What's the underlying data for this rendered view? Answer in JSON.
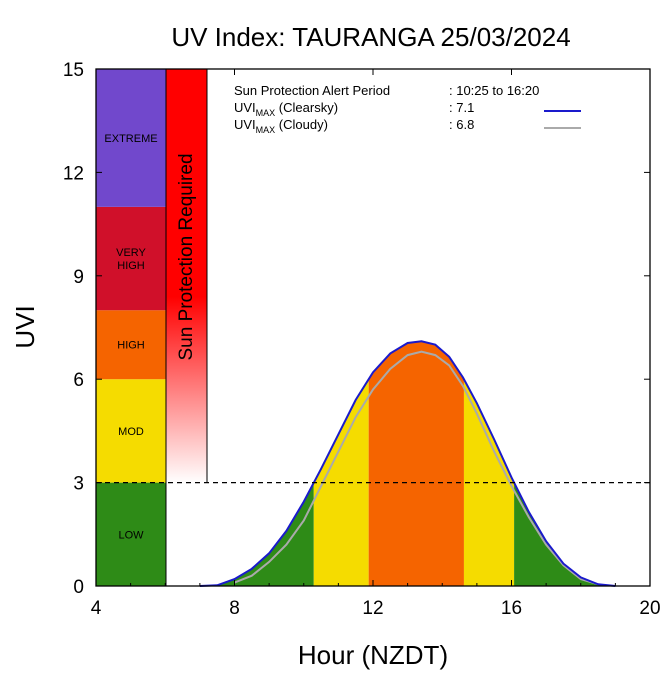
{
  "chart_data": {
    "type": "area",
    "title": "UV Index: TAURANGA 25/03/2024",
    "xlabel": "Hour (NZDT)",
    "ylabel": "UVI",
    "xlim": [
      4,
      20
    ],
    "ylim": [
      0,
      15
    ],
    "xticks": [
      "4",
      "8",
      "12",
      "16",
      "20"
    ],
    "yticks": [
      "0",
      "3",
      "6",
      "9",
      "12",
      "15"
    ],
    "threshold": 3,
    "sun_protection_label": "Sun Protection Required",
    "categories": [
      {
        "label": "LOW",
        "from": 0,
        "to": 3,
        "color": "#2e8b17"
      },
      {
        "label": "MOD",
        "from": 3,
        "to": 6,
        "color": "#f5dc00"
      },
      {
        "label": "HIGH",
        "from": 6,
        "to": 8,
        "color": "#f56400"
      },
      {
        "label": "VERY HIGH",
        "from": 8,
        "to": 11,
        "color": "#d0102a"
      },
      {
        "label": "EXTREME",
        "from": 11,
        "to": 15,
        "color": "#7148cc"
      }
    ],
    "series": [
      {
        "name": "Clearsky",
        "color": "#1a1acc",
        "x": [
          7.0,
          7.5,
          8.0,
          8.5,
          9.0,
          9.5,
          10.0,
          10.5,
          11.0,
          11.5,
          12.0,
          12.5,
          13.0,
          13.4,
          13.8,
          14.2,
          14.6,
          15.0,
          15.5,
          16.0,
          16.5,
          17.0,
          17.5,
          18.0,
          18.5,
          19.0
        ],
        "values": [
          0.0,
          0.02,
          0.2,
          0.5,
          0.95,
          1.6,
          2.45,
          3.4,
          4.4,
          5.4,
          6.2,
          6.75,
          7.05,
          7.1,
          7.0,
          6.65,
          6.05,
          5.3,
          4.25,
          3.15,
          2.15,
          1.3,
          0.65,
          0.25,
          0.05,
          0.0
        ]
      },
      {
        "name": "Cloudy",
        "color": "#aaaaaa",
        "x": [
          8.0,
          8.5,
          9.0,
          9.5,
          10.0,
          10.5,
          11.0,
          11.5,
          12.0,
          12.5,
          13.0,
          13.4,
          13.8,
          14.2,
          14.6,
          15.0,
          15.5,
          16.0,
          16.5,
          17.0,
          17.5,
          18.0,
          18.5
        ],
        "values": [
          0.1,
          0.3,
          0.7,
          1.2,
          1.9,
          2.9,
          3.9,
          4.9,
          5.7,
          6.3,
          6.7,
          6.8,
          6.7,
          6.4,
          5.8,
          5.0,
          3.9,
          2.9,
          2.0,
          1.2,
          0.6,
          0.2,
          0.05
        ]
      }
    ],
    "legend": {
      "alert_label": "Sun Protection Alert Period",
      "alert_value": ": 10:25 to 16:20",
      "uvi_prefix": "UVI",
      "uvi_sub": "MAX",
      "clearsky_label": " (Clearsky)",
      "clearsky_value": ":  7.1",
      "cloudy_label": " (Cloudy)",
      "cloudy_value": ":  6.8",
      "placement": "top-right"
    }
  }
}
